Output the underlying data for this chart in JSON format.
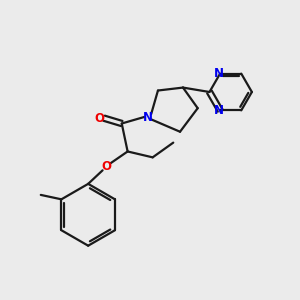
{
  "background_color": "#ebebeb",
  "bond_color": "#1a1a1a",
  "nitrogen_color": "#0000ee",
  "oxygen_color": "#ee0000",
  "line_width": 1.6,
  "figsize": [
    3.0,
    3.0
  ],
  "dpi": 100,
  "xlim": [
    0,
    10
  ],
  "ylim": [
    0,
    10
  ]
}
